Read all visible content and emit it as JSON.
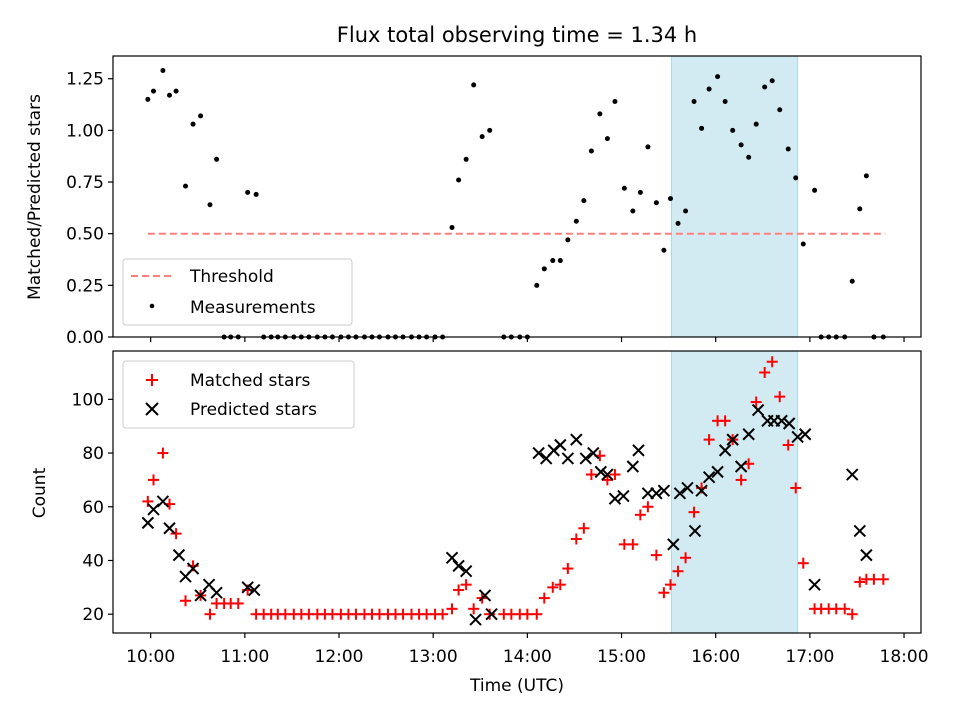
{
  "figure": {
    "title": "Flux total observing time = 1.34 h",
    "highlight_window": {
      "start_h": 15.53,
      "end_h": 16.87,
      "color": "#add8e6"
    }
  },
  "chart_data": [
    {
      "type": "scatter",
      "title": "Flux total observing time = 1.34 h",
      "ylabel": "Matched/Predicted stars",
      "xlim": [
        9.6,
        18.18
      ],
      "ylim": [
        0,
        1.36
      ],
      "yticks": [
        0.0,
        0.25,
        0.5,
        0.75,
        1.0,
        1.25
      ],
      "ytick_labels": [
        "0.00",
        "0.25",
        "0.50",
        "0.75",
        "1.00",
        "1.25"
      ],
      "legend": {
        "placement": "lower-left",
        "entries": [
          "Threshold",
          "Measurements"
        ]
      },
      "threshold": {
        "name": "Threshold",
        "value": 0.5,
        "x_range": [
          9.97,
          17.8
        ],
        "color": "#ff7f7f"
      },
      "measurements": {
        "name": "Measurements",
        "color": "#000000",
        "x": [
          9.97,
          10.03,
          10.13,
          10.2,
          10.27,
          10.37,
          10.45,
          10.53,
          10.63,
          10.7,
          10.78,
          10.85,
          10.93,
          11.03,
          11.12,
          11.2,
          11.28,
          11.35,
          11.43,
          11.52,
          11.6,
          11.68,
          11.77,
          11.85,
          11.93,
          12.02,
          12.1,
          12.18,
          12.27,
          12.35,
          12.43,
          12.52,
          12.6,
          12.68,
          12.77,
          12.85,
          12.93,
          13.02,
          13.1,
          13.2,
          13.27,
          13.35,
          13.43,
          13.52,
          13.6,
          13.75,
          13.83,
          13.92,
          14.0,
          14.1,
          14.18,
          14.27,
          14.35,
          14.43,
          14.52,
          14.6,
          14.68,
          14.77,
          14.85,
          14.93,
          15.03,
          15.12,
          15.2,
          15.28,
          15.37,
          15.45,
          15.52,
          15.6,
          15.68,
          15.77,
          15.85,
          15.93,
          16.02,
          16.1,
          16.18,
          16.27,
          16.35,
          16.43,
          16.52,
          16.6,
          16.68,
          16.77,
          16.85,
          16.93,
          17.05,
          17.12,
          17.2,
          17.28,
          17.37,
          17.45,
          17.53,
          17.6,
          17.68,
          17.78
        ],
        "y": [
          1.15,
          1.19,
          1.29,
          1.17,
          1.19,
          0.73,
          1.03,
          1.07,
          0.64,
          0.86,
          0.0,
          0.0,
          0.0,
          0.7,
          0.69,
          0.0,
          0.0,
          0.0,
          0.0,
          0.0,
          0.0,
          0.0,
          0.0,
          0.0,
          0.0,
          0.0,
          0.0,
          0.0,
          0.0,
          0.0,
          0.0,
          0.0,
          0.0,
          0.0,
          0.0,
          0.0,
          0.0,
          0.0,
          0.0,
          0.53,
          0.76,
          0.86,
          1.22,
          0.97,
          1.0,
          0.0,
          0.0,
          0.0,
          0.0,
          0.25,
          0.33,
          0.37,
          0.37,
          0.47,
          0.56,
          0.66,
          0.9,
          1.08,
          0.96,
          1.14,
          0.72,
          0.61,
          0.7,
          0.92,
          0.65,
          0.42,
          0.67,
          0.55,
          0.61,
          1.14,
          1.01,
          1.2,
          1.26,
          1.14,
          1.0,
          0.93,
          0.87,
          1.03,
          1.21,
          1.24,
          1.1,
          0.91,
          0.77,
          0.45,
          0.71,
          0.0,
          0.0,
          0.0,
          0.0,
          0.27,
          0.62,
          0.78,
          0.0,
          0.0
        ]
      }
    },
    {
      "type": "scatter",
      "xlabel": "Time (UTC)",
      "ylabel": "Count",
      "xlim": [
        9.6,
        18.18
      ],
      "ylim": [
        13,
        118
      ],
      "yticks": [
        20,
        40,
        60,
        80,
        100
      ],
      "ytick_labels": [
        "20",
        "40",
        "60",
        "80",
        "100"
      ],
      "xticks": [
        10,
        11,
        12,
        13,
        14,
        15,
        16,
        17,
        18
      ],
      "xtick_labels": [
        "10:00",
        "11:00",
        "12:00",
        "13:00",
        "14:00",
        "15:00",
        "16:00",
        "17:00",
        "18:00"
      ],
      "legend": {
        "placement": "upper-left",
        "entries": [
          "Matched stars",
          "Predicted stars"
        ]
      },
      "series": [
        {
          "name": "Matched stars",
          "marker": "plus",
          "color": "#ff0000",
          "x": [
            9.97,
            10.03,
            10.13,
            10.2,
            10.27,
            10.37,
            10.45,
            10.53,
            10.63,
            10.7,
            10.78,
            10.85,
            10.93,
            11.03,
            11.12,
            11.2,
            11.28,
            11.35,
            11.43,
            11.52,
            11.6,
            11.68,
            11.77,
            11.85,
            11.93,
            12.02,
            12.1,
            12.18,
            12.27,
            12.35,
            12.43,
            12.52,
            12.6,
            12.68,
            12.77,
            12.85,
            12.93,
            13.02,
            13.1,
            13.2,
            13.27,
            13.35,
            13.43,
            13.52,
            13.6,
            13.75,
            13.83,
            13.92,
            14.0,
            14.1,
            14.18,
            14.27,
            14.35,
            14.43,
            14.52,
            14.6,
            14.68,
            14.77,
            14.85,
            14.93,
            15.03,
            15.12,
            15.2,
            15.28,
            15.37,
            15.45,
            15.52,
            15.6,
            15.68,
            15.77,
            15.85,
            15.93,
            16.02,
            16.1,
            16.18,
            16.27,
            16.35,
            16.43,
            16.52,
            16.6,
            16.68,
            16.77,
            16.85,
            16.93,
            17.05,
            17.12,
            17.2,
            17.28,
            17.37,
            17.45,
            17.53,
            17.6,
            17.68,
            17.78
          ],
          "y": [
            62,
            70,
            80,
            61,
            50,
            25,
            38,
            27,
            20,
            24,
            24,
            24,
            24,
            29,
            20,
            20,
            20,
            20,
            20,
            20,
            20,
            20,
            20,
            20,
            20,
            20,
            20,
            20,
            20,
            20,
            20,
            20,
            20,
            20,
            20,
            20,
            20,
            20,
            20,
            22,
            29,
            31,
            22,
            26,
            20,
            20,
            20,
            20,
            20,
            20,
            26,
            30,
            31,
            37,
            48,
            52,
            72,
            79,
            70,
            72,
            46,
            46,
            57,
            60,
            42,
            28,
            31,
            36,
            41,
            58,
            67,
            85,
            92,
            92,
            85,
            70,
            76,
            99,
            110,
            114,
            101,
            83,
            67,
            39,
            22,
            22,
            22,
            22,
            22,
            20,
            32,
            33,
            33,
            33
          ]
        },
        {
          "name": "Predicted stars",
          "marker": "x",
          "color": "#000000",
          "x": [
            9.97,
            10.03,
            10.13,
            10.2,
            10.3,
            10.37,
            10.45,
            10.53,
            10.62,
            10.7,
            11.03,
            11.1,
            13.2,
            13.27,
            13.35,
            13.45,
            13.55,
            13.62,
            14.12,
            14.2,
            14.28,
            14.35,
            14.43,
            14.52,
            14.62,
            14.7,
            14.78,
            14.85,
            14.93,
            15.02,
            15.12,
            15.18,
            15.28,
            15.37,
            15.45,
            15.55,
            15.62,
            15.7,
            15.78,
            15.85,
            15.93,
            16.02,
            16.1,
            16.18,
            16.27,
            16.35,
            16.45,
            16.55,
            16.62,
            16.7,
            16.78,
            16.87,
            16.95,
            17.05,
            17.45,
            17.53,
            17.6
          ],
          "y": [
            54,
            59,
            62,
            52,
            42,
            34,
            37,
            27,
            31,
            28,
            30,
            29,
            41,
            38,
            36,
            18,
            27,
            20,
            80,
            78,
            81,
            83,
            78,
            85,
            78,
            80,
            73,
            72,
            63,
            64,
            75,
            81,
            65,
            65,
            66,
            46,
            65,
            67,
            51,
            66,
            71,
            73,
            81,
            85,
            75,
            87,
            96,
            92,
            92,
            92,
            91,
            86,
            87,
            31,
            72,
            51,
            42
          ]
        }
      ]
    }
  ]
}
